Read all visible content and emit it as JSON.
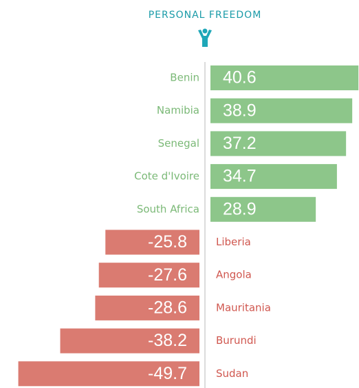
{
  "chart_data": {
    "type": "bar",
    "orientation": "horizontal",
    "title": "PERSONAL FREEDOM",
    "categories": [
      "Benin",
      "Namibia",
      "Senegal",
      "Cote d'Ivoire",
      "South Africa",
      "Liberia",
      "Angola",
      "Mauritania",
      "Burundi",
      "Sudan"
    ],
    "values": [
      40.6,
      38.9,
      37.2,
      34.7,
      28.9,
      -25.8,
      -27.6,
      -28.6,
      -38.2,
      -49.7
    ],
    "positive_color": "#8dc68a",
    "negative_color": "#da7b71",
    "positive_label_color": "#7bb977",
    "negative_label_color": "#d0574f",
    "title_color": "#1a9ba8"
  }
}
